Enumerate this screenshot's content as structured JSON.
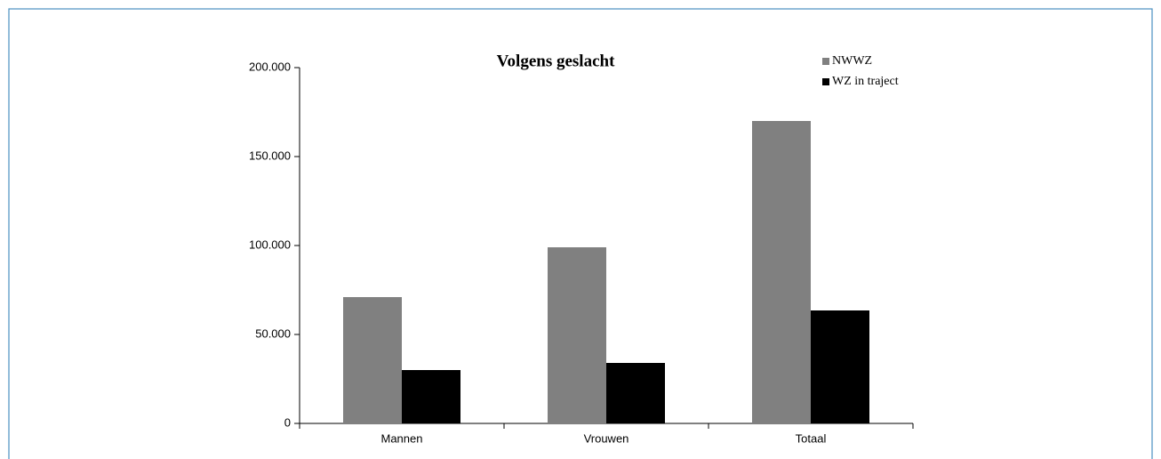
{
  "chart_data": {
    "type": "bar",
    "title": "Volgens geslacht",
    "categories": [
      "Mannen",
      "Vrouwen",
      "Totaal"
    ],
    "series": [
      {
        "name": "NWWZ",
        "color": "#808080",
        "values": [
          71000,
          99000,
          170000
        ]
      },
      {
        "name": "WZ in traject",
        "color": "#000000",
        "values": [
          30000,
          34000,
          63500
        ]
      }
    ],
    "ylim": [
      0,
      200000
    ],
    "yticks": [
      0,
      {
        "value": 50000,
        "label": "50.000"
      },
      {
        "value": 100000,
        "label": "100.000"
      },
      {
        "value": 150000,
        "label": "150.000"
      },
      {
        "value": 200000,
        "label": "200.000"
      }
    ],
    "grid": false,
    "legend": "top-right"
  }
}
